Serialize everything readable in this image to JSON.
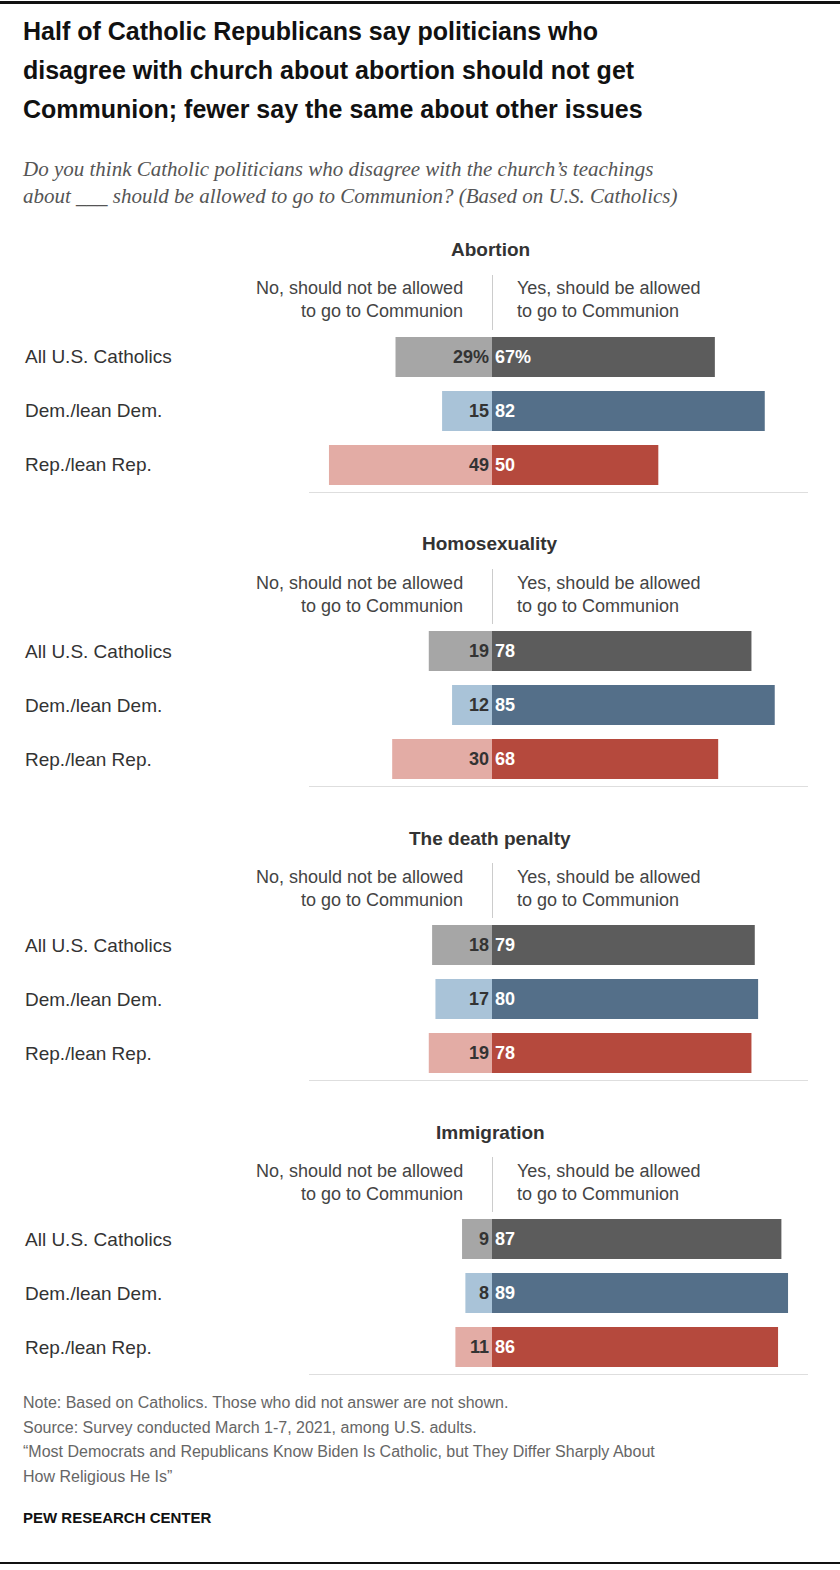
{
  "title": "Half of Catholic Republicans say politicians who\ndisagree with church about abortion should not get\nCommunion; fewer say the same about other issues",
  "subtitle": "Do you think Catholic politicians who disagree with the church’s teachings\nabout ___ should be allowed to go to Communion? (Based on U.S. Catholics)",
  "notes": [
    "Note: Based on Catholics. Those who did not answer are not shown.",
    "Source: Survey conducted March 1-7, 2021, among U.S. adults.",
    "“Most Democrats and Republicans Know Biden Is Catholic, but They Differ Sharply About\nHow Religious He Is”"
  ],
  "credit": "PEW RESEARCH CENTER",
  "chart_data": [
    {
      "type": "bar",
      "orientation": "horizontal",
      "data_labels": true,
      "tick_labels": false,
      "grid": true,
      "title": "Abortion",
      "categories": [
        "All U.S. Catholics",
        "Dem./lean Dem.",
        "Rep./lean Rep."
      ],
      "series": [
        {
          "name": "No, should not be allowed\nto go to Communion",
          "values": [
            29,
            15,
            49
          ],
          "value_labels": [
            "29%",
            "15",
            "49"
          ],
          "colors": [
            "#a6a6a6",
            "#a9c3d8",
            "#e3aca5"
          ],
          "xlim": [
            55,
            0
          ],
          "xticks": [
            0
          ]
        },
        {
          "name": "Yes, should be allowed\nto go to Communion",
          "values": [
            67,
            82,
            50
          ],
          "value_labels": [
            "67%",
            "82",
            "50"
          ],
          "colors": [
            "#5c5c5c",
            "#546f89",
            "#b5493d"
          ],
          "xlim": [
            0,
            95
          ],
          "xticks": [
            0
          ]
        }
      ]
    },
    {
      "type": "bar",
      "orientation": "horizontal",
      "data_labels": true,
      "tick_labels": false,
      "grid": true,
      "title": "Homosexuality",
      "categories": [
        "All U.S. Catholics",
        "Dem./lean Dem.",
        "Rep./lean Rep."
      ],
      "series": [
        {
          "name": "No, should not be allowed\nto go to Communion",
          "values": [
            19,
            12,
            30
          ],
          "colors": [
            "#a6a6a6",
            "#a9c3d8",
            "#e3aca5"
          ],
          "xlim": [
            55,
            0
          ],
          "xticks": [
            0
          ]
        },
        {
          "name": "Yes, should be allowed\nto go to Communion",
          "values": [
            78,
            85,
            68
          ],
          "colors": [
            "#5c5c5c",
            "#546f89",
            "#b5493d"
          ],
          "xlim": [
            0,
            95
          ],
          "xticks": [
            0
          ]
        }
      ]
    },
    {
      "type": "bar",
      "orientation": "horizontal",
      "data_labels": true,
      "tick_labels": false,
      "grid": true,
      "title": "The death penalty",
      "categories": [
        "All U.S. Catholics",
        "Dem./lean Dem.",
        "Rep./lean Rep."
      ],
      "series": [
        {
          "name": "No, should not be allowed\nto go to Communion",
          "values": [
            18,
            17,
            19
          ],
          "colors": [
            "#a6a6a6",
            "#a9c3d8",
            "#e3aca5"
          ],
          "xlim": [
            55,
            0
          ],
          "xticks": [
            0
          ]
        },
        {
          "name": "Yes, should be allowed\nto go to Communion",
          "values": [
            79,
            80,
            78
          ],
          "colors": [
            "#5c5c5c",
            "#546f89",
            "#b5493d"
          ],
          "xlim": [
            0,
            95
          ],
          "xticks": [
            0
          ]
        }
      ]
    },
    {
      "type": "bar",
      "orientation": "horizontal",
      "data_labels": true,
      "tick_labels": false,
      "grid": true,
      "title": "Immigration",
      "categories": [
        "All U.S. Catholics",
        "Dem./lean Dem.",
        "Rep./lean Rep."
      ],
      "series": [
        {
          "name": "No, should not be allowed\nto go to Communion",
          "values": [
            9,
            8,
            11
          ],
          "colors": [
            "#a6a6a6",
            "#a9c3d8",
            "#e3aca5"
          ],
          "xlim": [
            55,
            0
          ],
          "xticks": [
            0
          ]
        },
        {
          "name": "Yes, should be allowed\nto go to Communion",
          "values": [
            87,
            89,
            86
          ],
          "colors": [
            "#5c5c5c",
            "#546f89",
            "#b5493d"
          ],
          "xlim": [
            0,
            95
          ],
          "xticks": [
            0
          ]
        }
      ]
    }
  ]
}
